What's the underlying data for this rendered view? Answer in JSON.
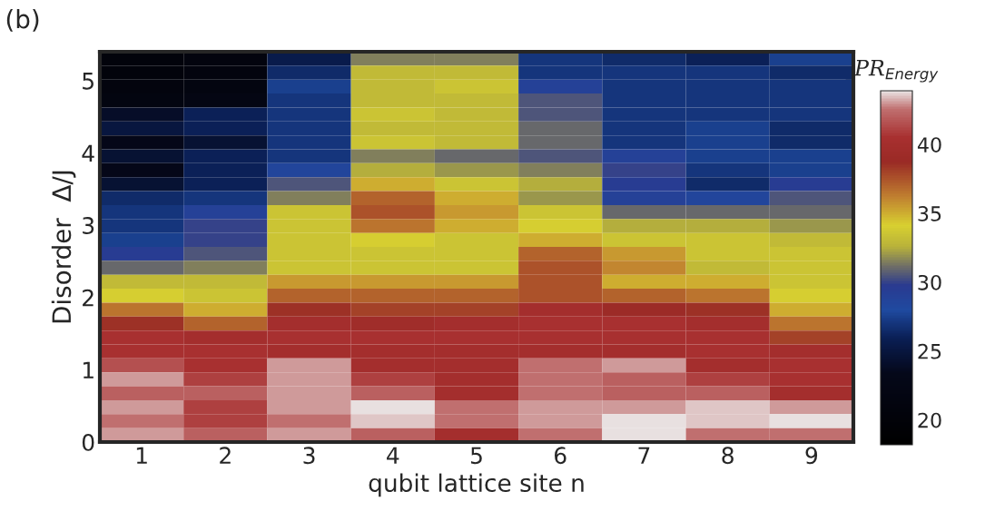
{
  "chart_data": {
    "type": "heatmap",
    "xlabel": "qubit lattice site n",
    "ylabel": "Disorder  Δ/J",
    "clabel": "PR$_{Energy}$",
    "annotations": [
      "(b)"
    ],
    "categories": [
      "1",
      "2",
      "3",
      "4",
      "5",
      "6",
      "7",
      "8",
      "9"
    ],
    "ylim": [
      0,
      5.4
    ],
    "yticks": [
      0,
      1,
      2,
      3,
      4,
      5
    ],
    "clim": [
      18.2,
      43.9
    ],
    "cticks": [
      20,
      25,
      30,
      35,
      40
    ],
    "cells": [
      [
        20.5,
        21,
        25.5,
        31.5,
        31.5,
        27,
        26.5,
        26,
        27.5
      ],
      [
        20.5,
        21,
        26.5,
        33,
        33,
        27,
        27,
        27,
        26.5
      ],
      [
        21,
        21.5,
        27.5,
        33,
        33.5,
        29,
        27,
        27,
        27
      ],
      [
        21.5,
        22,
        27,
        33,
        33,
        30.5,
        27,
        27,
        27
      ],
      [
        24,
        26,
        27,
        33.5,
        33,
        30.5,
        27,
        27,
        27
      ],
      [
        25,
        26,
        27,
        33,
        33,
        31,
        27,
        27.5,
        26.5
      ],
      [
        23,
        24.5,
        27,
        33.5,
        33,
        31,
        27,
        27.5,
        26.5
      ],
      [
        24.5,
        26,
        27,
        31.5,
        31,
        30.5,
        29,
        27.5,
        27.5
      ],
      [
        23,
        26,
        28.5,
        32.5,
        32,
        31.5,
        30,
        27,
        27.5
      ],
      [
        24.5,
        26,
        30.5,
        35,
        33.5,
        32.5,
        29.5,
        26.5,
        29.5
      ],
      [
        26.5,
        27,
        31.5,
        37,
        35,
        32,
        29,
        28.5,
        30.5
      ],
      [
        27,
        29,
        33.5,
        37.5,
        35.5,
        33.5,
        31,
        31,
        31
      ],
      [
        27,
        30,
        33.5,
        36.5,
        35,
        34,
        32.5,
        32.5,
        32
      ],
      [
        27.5,
        30,
        33.5,
        34,
        33.5,
        35,
        33.5,
        33.5,
        33
      ],
      [
        29.5,
        30.5,
        33.5,
        33.5,
        33.5,
        37,
        35.5,
        33.5,
        33.5
      ],
      [
        31,
        31.5,
        33.5,
        33.5,
        33.5,
        37.5,
        36,
        33,
        33.5
      ],
      [
        33,
        33,
        35.5,
        35.5,
        35.5,
        37.5,
        35,
        35,
        33.5
      ],
      [
        34,
        33.5,
        37,
        37,
        37,
        37.5,
        37,
        36.5,
        34
      ],
      [
        36.5,
        35,
        38.5,
        38,
        38,
        40,
        39,
        38.5,
        35
      ],
      [
        38.5,
        37,
        40,
        39.5,
        40,
        40.5,
        40.5,
        40,
        36.5
      ],
      [
        40.5,
        40,
        40.5,
        40.5,
        40.5,
        40.5,
        40.5,
        40.5,
        38
      ],
      [
        40.5,
        40.5,
        40,
        40,
        40,
        40,
        40,
        40.5,
        40
      ],
      [
        41.5,
        40.5,
        43,
        40,
        40,
        42.5,
        43,
        40,
        40.5
      ],
      [
        43,
        41,
        43,
        41,
        40,
        42.5,
        42,
        41,
        40.5
      ],
      [
        42,
        42,
        43,
        42,
        40,
        42.5,
        42,
        42,
        40
      ],
      [
        43,
        41,
        43,
        43.8,
        42.5,
        43,
        43,
        43.5,
        43
      ],
      [
        42.5,
        41,
        42.5,
        43.5,
        42.5,
        43,
        43.8,
        43.5,
        43.8
      ],
      [
        43,
        42,
        43,
        42,
        40,
        42.5,
        43.8,
        42.5,
        42.5
      ]
    ]
  }
}
